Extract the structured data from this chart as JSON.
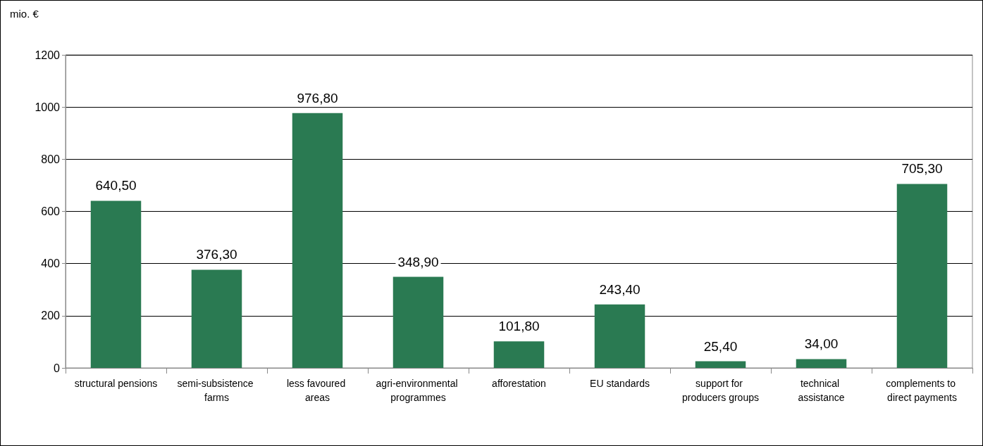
{
  "chart_data": {
    "type": "bar",
    "ylabel": "mio. €",
    "categories": [
      "structural pensions",
      "semi-subsistence farms",
      "less favoured areas",
      "agri-environmental programmes",
      "afforestation",
      "EU standards",
      "support for producers groups",
      "technical assistance",
      "complements to direct payments"
    ],
    "values": [
      640.5,
      376.3,
      976.8,
      348.9,
      101.8,
      243.4,
      25.4,
      34.0,
      705.3
    ],
    "value_labels": [
      "640,50",
      "376,30",
      "976,80",
      "348,90",
      "101,80",
      "243,40",
      "25,40",
      "34,00",
      "705,30"
    ],
    "color": "#2a7a52",
    "ylim": [
      0,
      1200
    ],
    "yticks": [
      0,
      200,
      400,
      600,
      800,
      1000,
      1200
    ],
    "grid": "y"
  }
}
